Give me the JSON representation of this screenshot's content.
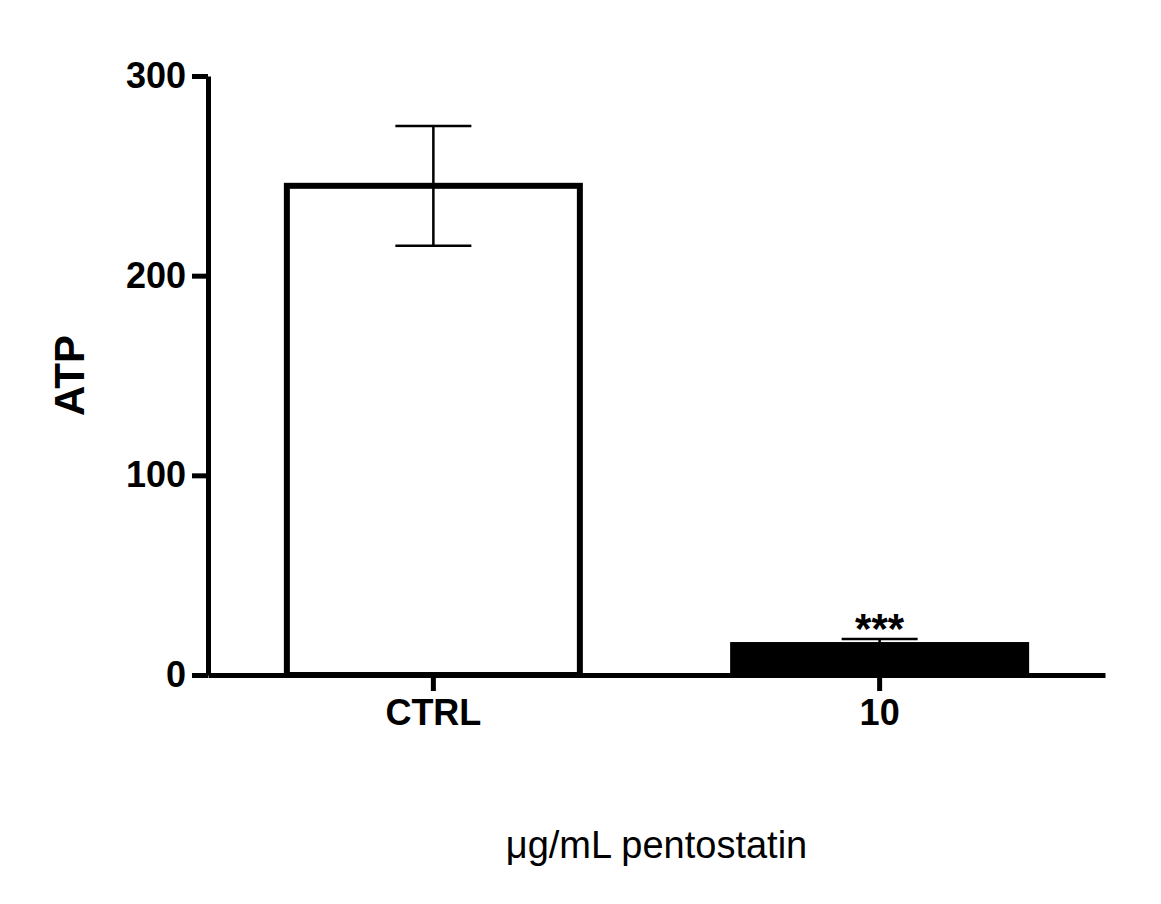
{
  "chart_data": {
    "type": "bar",
    "categories": [
      "CTRL",
      "10"
    ],
    "values": [
      245,
      15
    ],
    "errors": [
      30,
      3
    ],
    "colors": [
      "#ffffff",
      "#000000"
    ],
    "x_label": "μg/mL pentostatin",
    "y_label": "ATP",
    "ylim": [
      0,
      300
    ],
    "yticks": [
      0,
      100,
      200,
      300
    ],
    "annotations": [
      {
        "text": "***",
        "category": "10"
      }
    ]
  }
}
